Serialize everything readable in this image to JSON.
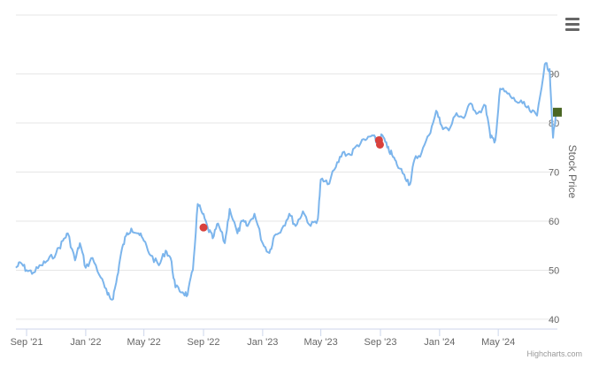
{
  "chart_data": {
    "type": "line",
    "title": "",
    "xlabel": "",
    "ylabel": "Stock Price",
    "ylim": [
      38,
      102
    ],
    "y_ticks": [
      40,
      50,
      60,
      70,
      80,
      90
    ],
    "y_axis_side": "right",
    "x_range": [
      "2021-08-10",
      "2024-08-31"
    ],
    "x_ticks": [
      {
        "date": "2021-09-01",
        "label": "Sep '21"
      },
      {
        "date": "2022-01-01",
        "label": "Jan '22"
      },
      {
        "date": "2022-05-01",
        "label": "May '22"
      },
      {
        "date": "2022-09-01",
        "label": "Sep '22"
      },
      {
        "date": "2023-01-01",
        "label": "Jan '23"
      },
      {
        "date": "2023-05-01",
        "label": "May '23"
      },
      {
        "date": "2023-09-01",
        "label": "Sep '23"
      },
      {
        "date": "2024-01-01",
        "label": "Jan '24"
      },
      {
        "date": "2024-05-01",
        "label": "May '24"
      }
    ],
    "grid": true,
    "series": [
      {
        "color": "#7cb5ec",
        "points": [
          [
            "2021-08-10",
            50.5
          ],
          [
            "2021-08-20",
            51.5
          ],
          [
            "2021-09-01",
            50.0
          ],
          [
            "2021-09-15",
            49.5
          ],
          [
            "2021-10-01",
            51.0
          ],
          [
            "2021-10-15",
            52.0
          ],
          [
            "2021-11-01",
            53.5
          ],
          [
            "2021-11-15",
            56.0
          ],
          [
            "2021-11-25",
            57.5
          ],
          [
            "2021-12-10",
            52.0
          ],
          [
            "2021-12-20",
            55.5
          ],
          [
            "2022-01-01",
            50.5
          ],
          [
            "2022-01-15",
            52.5
          ],
          [
            "2022-02-01",
            48.5
          ],
          [
            "2022-02-15",
            45.0
          ],
          [
            "2022-02-25",
            44.0
          ],
          [
            "2022-03-05",
            47.5
          ],
          [
            "2022-03-15",
            53.5
          ],
          [
            "2022-03-25",
            57.0
          ],
          [
            "2022-04-05",
            58.5
          ],
          [
            "2022-04-20",
            57.5
          ],
          [
            "2022-05-01",
            56.0
          ],
          [
            "2022-05-15",
            53.0
          ],
          [
            "2022-06-01",
            51.0
          ],
          [
            "2022-06-15",
            54.0
          ],
          [
            "2022-06-25",
            52.5
          ],
          [
            "2022-07-05",
            46.5
          ],
          [
            "2022-07-20",
            45.5
          ],
          [
            "2022-07-30",
            45.0
          ],
          [
            "2022-08-10",
            50.0
          ],
          [
            "2022-08-20",
            63.5
          ],
          [
            "2022-08-30",
            61.5
          ],
          [
            "2022-09-10",
            58.5
          ],
          [
            "2022-09-20",
            56.5
          ],
          [
            "2022-10-01",
            59.5
          ],
          [
            "2022-10-15",
            55.5
          ],
          [
            "2022-10-25",
            62.5
          ],
          [
            "2022-11-10",
            57.5
          ],
          [
            "2022-11-20",
            60.0
          ],
          [
            "2022-12-01",
            59.0
          ],
          [
            "2022-12-15",
            61.5
          ],
          [
            "2023-01-01",
            55.5
          ],
          [
            "2023-01-15",
            53.5
          ],
          [
            "2023-01-25",
            57.0
          ],
          [
            "2023-02-10",
            58.5
          ],
          [
            "2023-02-25",
            61.5
          ],
          [
            "2023-03-10",
            59.0
          ],
          [
            "2023-03-25",
            62.0
          ],
          [
            "2023-04-10",
            59.0
          ],
          [
            "2023-04-25",
            60.5
          ],
          [
            "2023-05-01",
            68.5
          ],
          [
            "2023-05-15",
            67.5
          ],
          [
            "2023-06-01",
            71.0
          ],
          [
            "2023-06-15",
            74.0
          ],
          [
            "2023-07-01",
            73.5
          ],
          [
            "2023-07-15",
            75.5
          ],
          [
            "2023-08-01",
            76.5
          ],
          [
            "2023-08-15",
            77.5
          ],
          [
            "2023-08-25",
            76.0
          ],
          [
            "2023-09-05",
            77.5
          ],
          [
            "2023-09-15",
            75.0
          ],
          [
            "2023-09-25",
            73.5
          ],
          [
            "2023-10-05",
            71.5
          ],
          [
            "2023-10-20",
            69.5
          ],
          [
            "2023-11-01",
            67.5
          ],
          [
            "2023-11-10",
            72.5
          ],
          [
            "2023-11-25",
            74.0
          ],
          [
            "2023-12-10",
            77.5
          ],
          [
            "2023-12-25",
            82.5
          ],
          [
            "2024-01-05",
            79.5
          ],
          [
            "2024-01-20",
            78.5
          ],
          [
            "2024-02-05",
            82.0
          ],
          [
            "2024-02-20",
            81.0
          ],
          [
            "2024-03-05",
            84.0
          ],
          [
            "2024-03-20",
            82.0
          ],
          [
            "2024-04-05",
            83.5
          ],
          [
            "2024-04-15",
            77.0
          ],
          [
            "2024-04-25",
            76.5
          ],
          [
            "2024-05-05",
            87.0
          ],
          [
            "2024-05-20",
            86.0
          ],
          [
            "2024-06-05",
            84.5
          ],
          [
            "2024-06-20",
            84.0
          ],
          [
            "2024-07-05",
            82.5
          ],
          [
            "2024-07-20",
            81.5
          ],
          [
            "2024-08-05",
            92.0
          ],
          [
            "2024-08-15",
            91.0
          ],
          [
            "2024-08-22",
            77.0
          ],
          [
            "2024-08-29",
            82.0
          ]
        ]
      }
    ],
    "markers": [
      {
        "date": "2022-09-01",
        "value": 58.7,
        "color": "#d9413d",
        "shape": "circle"
      },
      {
        "date": "2023-08-29",
        "value": 76.5,
        "color": "#d9413d",
        "shape": "circle"
      },
      {
        "date": "2023-08-31",
        "value": 75.6,
        "color": "#d9413d",
        "shape": "circle"
      },
      {
        "date": "2024-08-31",
        "value": 82.2,
        "color": "#4a6623",
        "shape": "square"
      }
    ]
  },
  "menu": {
    "icon": "hamburger-menu-icon"
  },
  "credits": {
    "text": "Highcharts.com"
  }
}
